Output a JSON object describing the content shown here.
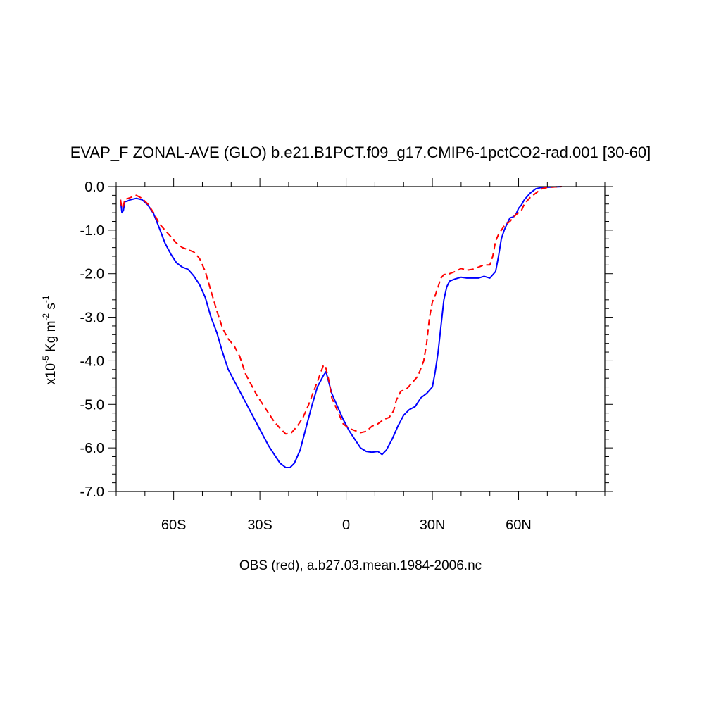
{
  "chart_data": {
    "type": "line",
    "title": "EVAP_F ZONAL-AVE (GLO) b.e21.B1PCT.f09_g17.CMIP6-1pctCO2-rad.001 [30-60]",
    "xlabel": "OBS (red), a.b27.03.mean.1984-2006.nc",
    "ylabel": {
      "prefix": "x10",
      "exponent": "-5",
      "unit": " Kg m",
      "unit_exp": "-2",
      "unit2": " s",
      "unit2_exp": "-1"
    },
    "xlim": [
      -80,
      90
    ],
    "ylim": [
      -7.0,
      0.0
    ],
    "x_ticks": [
      {
        "value": -60,
        "label": "60S"
      },
      {
        "value": -30,
        "label": "30S"
      },
      {
        "value": 0,
        "label": "0"
      },
      {
        "value": 30,
        "label": "30N"
      },
      {
        "value": 60,
        "label": "60N"
      }
    ],
    "y_ticks": [
      {
        "value": 0.0,
        "label": "0.0"
      },
      {
        "value": -1.0,
        "label": "-1.0"
      },
      {
        "value": -2.0,
        "label": "-2.0"
      },
      {
        "value": -3.0,
        "label": "-3.0"
      },
      {
        "value": -4.0,
        "label": "-4.0"
      },
      {
        "value": -5.0,
        "label": "-5.0"
      },
      {
        "value": -6.0,
        "label": "-6.0"
      },
      {
        "value": -7.0,
        "label": "-7.0"
      }
    ],
    "series": [
      {
        "color": "#0000ff",
        "style": "solid",
        "points": [
          [
            -78.5,
            -0.3
          ],
          [
            -78,
            -0.6
          ],
          [
            -77.5,
            -0.55
          ],
          [
            -77,
            -0.35
          ],
          [
            -76,
            -0.33
          ],
          [
            -75,
            -0.3
          ],
          [
            -73,
            -0.27
          ],
          [
            -71,
            -0.3
          ],
          [
            -69,
            -0.42
          ],
          [
            -67,
            -0.62
          ],
          [
            -65,
            -0.95
          ],
          [
            -63,
            -1.3
          ],
          [
            -61,
            -1.55
          ],
          [
            -59,
            -1.75
          ],
          [
            -57,
            -1.85
          ],
          [
            -55,
            -1.9
          ],
          [
            -53,
            -2.05
          ],
          [
            -51,
            -2.25
          ],
          [
            -49,
            -2.55
          ],
          [
            -47,
            -3.0
          ],
          [
            -45,
            -3.35
          ],
          [
            -43,
            -3.8
          ],
          [
            -41,
            -4.2
          ],
          [
            -39,
            -4.45
          ],
          [
            -37,
            -4.7
          ],
          [
            -35,
            -4.95
          ],
          [
            -33,
            -5.2
          ],
          [
            -31,
            -5.45
          ],
          [
            -29,
            -5.7
          ],
          [
            -27,
            -5.95
          ],
          [
            -25,
            -6.15
          ],
          [
            -23,
            -6.35
          ],
          [
            -21,
            -6.45
          ],
          [
            -19.5,
            -6.45
          ],
          [
            -18,
            -6.35
          ],
          [
            -16,
            -6.05
          ],
          [
            -14,
            -5.55
          ],
          [
            -12,
            -5.05
          ],
          [
            -10,
            -4.6
          ],
          [
            -8,
            -4.35
          ],
          [
            -7,
            -4.25
          ],
          [
            -6,
            -4.5
          ],
          [
            -5,
            -4.75
          ],
          [
            -3,
            -5.05
          ],
          [
            -1,
            -5.35
          ],
          [
            1,
            -5.6
          ],
          [
            3,
            -5.8
          ],
          [
            5,
            -6.0
          ],
          [
            7,
            -6.08
          ],
          [
            9,
            -6.1
          ],
          [
            11,
            -6.08
          ],
          [
            12.5,
            -6.15
          ],
          [
            14,
            -6.05
          ],
          [
            16,
            -5.8
          ],
          [
            18,
            -5.5
          ],
          [
            20,
            -5.25
          ],
          [
            22,
            -5.12
          ],
          [
            24,
            -5.05
          ],
          [
            26,
            -4.85
          ],
          [
            28,
            -4.75
          ],
          [
            30,
            -4.6
          ],
          [
            31,
            -4.25
          ],
          [
            32,
            -3.8
          ],
          [
            33,
            -3.2
          ],
          [
            34,
            -2.6
          ],
          [
            35,
            -2.3
          ],
          [
            36,
            -2.17
          ],
          [
            38,
            -2.12
          ],
          [
            40,
            -2.08
          ],
          [
            42,
            -2.1
          ],
          [
            44,
            -2.1
          ],
          [
            46,
            -2.1
          ],
          [
            48,
            -2.06
          ],
          [
            50,
            -2.1
          ],
          [
            52,
            -1.95
          ],
          [
            53,
            -1.6
          ],
          [
            54,
            -1.2
          ],
          [
            55,
            -1.0
          ],
          [
            56,
            -0.85
          ],
          [
            57,
            -0.72
          ],
          [
            58,
            -0.7
          ],
          [
            59,
            -0.65
          ],
          [
            60,
            -0.5
          ],
          [
            61,
            -0.42
          ],
          [
            62,
            -0.3
          ],
          [
            64,
            -0.15
          ],
          [
            66,
            -0.05
          ],
          [
            68,
            -0.02
          ],
          [
            72,
            -0.01
          ],
          [
            75,
            0.0
          ]
        ]
      },
      {
        "color": "#ff0000",
        "style": "dashed",
        "points": [
          [
            -78.5,
            -0.3
          ],
          [
            -78,
            -0.5
          ],
          [
            -77.5,
            -0.45
          ],
          [
            -77,
            -0.3
          ],
          [
            -75,
            -0.25
          ],
          [
            -73,
            -0.2
          ],
          [
            -71,
            -0.27
          ],
          [
            -69,
            -0.4
          ],
          [
            -67,
            -0.6
          ],
          [
            -65,
            -0.85
          ],
          [
            -63,
            -1.0
          ],
          [
            -61,
            -1.15
          ],
          [
            -59,
            -1.3
          ],
          [
            -57,
            -1.4
          ],
          [
            -55,
            -1.45
          ],
          [
            -53,
            -1.5
          ],
          [
            -51,
            -1.65
          ],
          [
            -49,
            -1.95
          ],
          [
            -47,
            -2.4
          ],
          [
            -45,
            -2.85
          ],
          [
            -43,
            -3.25
          ],
          [
            -41,
            -3.5
          ],
          [
            -39,
            -3.65
          ],
          [
            -37,
            -3.9
          ],
          [
            -35,
            -4.3
          ],
          [
            -33,
            -4.55
          ],
          [
            -31,
            -4.8
          ],
          [
            -29,
            -5.0
          ],
          [
            -27,
            -5.2
          ],
          [
            -25,
            -5.4
          ],
          [
            -23,
            -5.55
          ],
          [
            -21,
            -5.68
          ],
          [
            -19,
            -5.65
          ],
          [
            -17,
            -5.5
          ],
          [
            -15,
            -5.3
          ],
          [
            -13,
            -5.0
          ],
          [
            -11,
            -4.65
          ],
          [
            -9,
            -4.3
          ],
          [
            -8,
            -4.12
          ],
          [
            -7.3,
            -4.1
          ],
          [
            -6,
            -4.45
          ],
          [
            -5,
            -4.85
          ],
          [
            -3,
            -5.15
          ],
          [
            -1,
            -5.45
          ],
          [
            1,
            -5.55
          ],
          [
            3,
            -5.6
          ],
          [
            5,
            -5.65
          ],
          [
            7,
            -5.62
          ],
          [
            9,
            -5.5
          ],
          [
            11,
            -5.45
          ],
          [
            13,
            -5.35
          ],
          [
            15,
            -5.3
          ],
          [
            16.5,
            -5.15
          ],
          [
            17.5,
            -4.9
          ],
          [
            19,
            -4.7
          ],
          [
            21,
            -4.65
          ],
          [
            23,
            -4.5
          ],
          [
            25,
            -4.35
          ],
          [
            27,
            -4.0
          ],
          [
            28,
            -3.6
          ],
          [
            29,
            -3.0
          ],
          [
            30,
            -2.65
          ],
          [
            31,
            -2.5
          ],
          [
            32,
            -2.3
          ],
          [
            33,
            -2.1
          ],
          [
            34,
            -2.02
          ],
          [
            36,
            -2.0
          ],
          [
            38,
            -1.95
          ],
          [
            40,
            -1.88
          ],
          [
            42,
            -1.92
          ],
          [
            44,
            -1.9
          ],
          [
            46,
            -1.85
          ],
          [
            48,
            -1.8
          ],
          [
            50,
            -1.8
          ],
          [
            51,
            -1.6
          ],
          [
            52,
            -1.25
          ],
          [
            53,
            -1.1
          ],
          [
            54,
            -1.0
          ],
          [
            55,
            -0.9
          ],
          [
            57,
            -0.8
          ],
          [
            58,
            -0.72
          ],
          [
            59,
            -0.65
          ],
          [
            61,
            -0.55
          ],
          [
            62,
            -0.4
          ],
          [
            64,
            -0.25
          ],
          [
            66,
            -0.15
          ],
          [
            68,
            -0.05
          ],
          [
            70,
            -0.02
          ],
          [
            72,
            -0.01
          ],
          [
            75,
            0.0
          ]
        ]
      }
    ]
  }
}
